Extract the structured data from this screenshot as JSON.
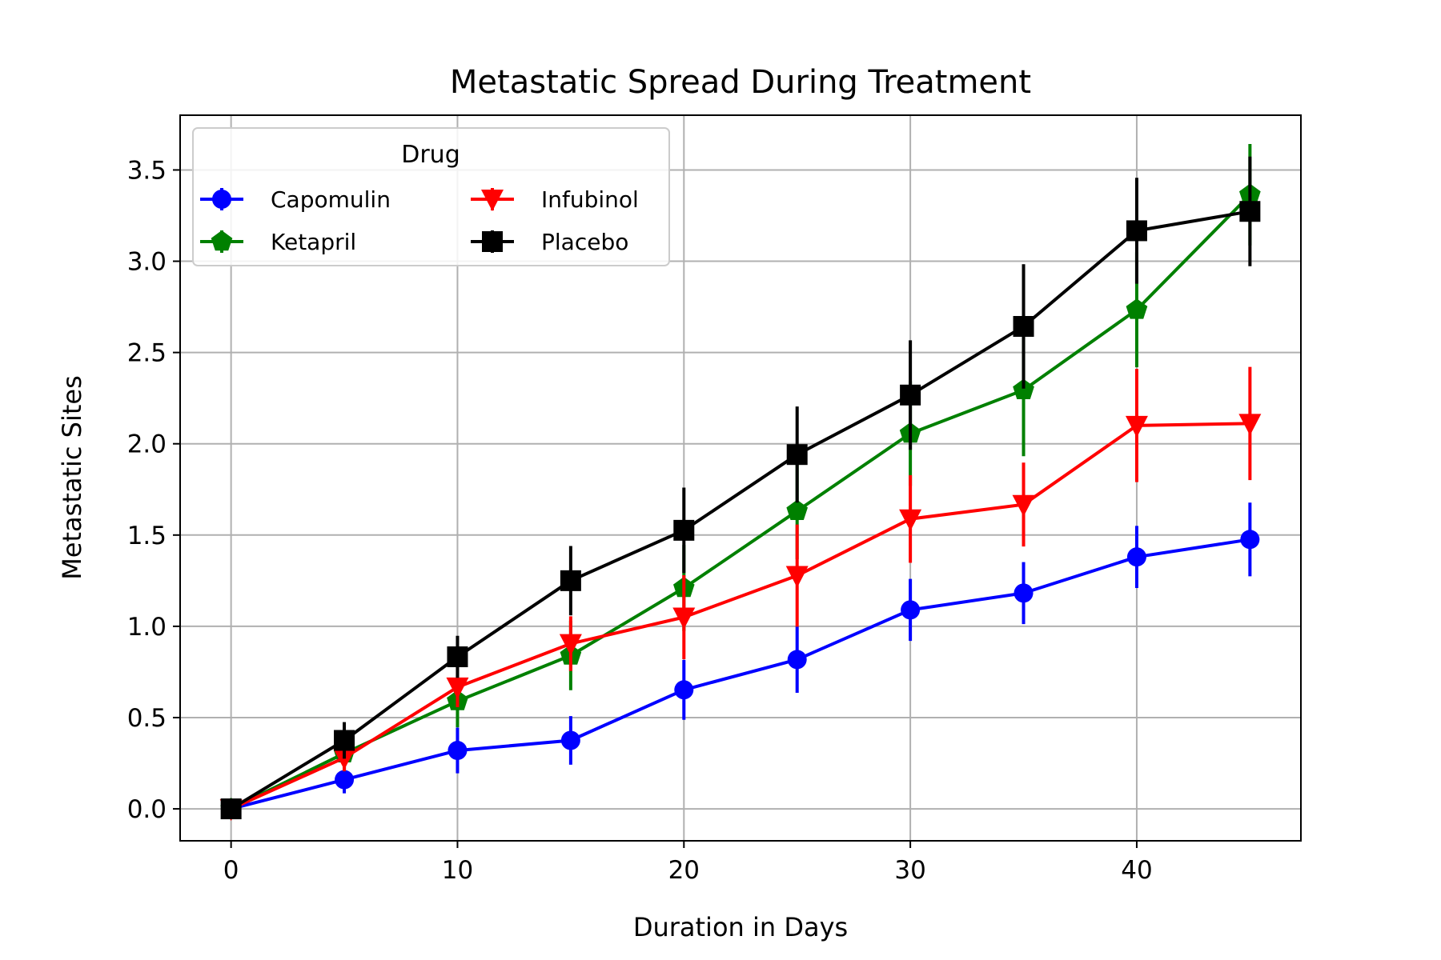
{
  "chart_data": {
    "type": "line",
    "title": "Metastatic Spread During Treatment",
    "xlabel": "Duration in Days",
    "ylabel": "Metastatic Sites",
    "xlim": [
      -2.25,
      47.25
    ],
    "ylim": [
      -0.175,
      3.8
    ],
    "xticks": [
      0,
      10,
      20,
      30,
      40
    ],
    "yticks": [
      0.0,
      0.5,
      1.0,
      1.5,
      2.0,
      2.5,
      3.0,
      3.5
    ],
    "xtick_labels": [
      "0",
      "10",
      "20",
      "30",
      "40"
    ],
    "ytick_labels": [
      "0.0",
      "0.5",
      "1.0",
      "1.5",
      "2.0",
      "2.5",
      "3.0",
      "3.5"
    ],
    "grid": true,
    "legend": {
      "title": "Drug",
      "placement": "upper-left",
      "columns": 2
    },
    "x": [
      0,
      5,
      10,
      15,
      20,
      25,
      30,
      35,
      40,
      45
    ],
    "series": [
      {
        "name": "Capomulin",
        "color": "#0000ff",
        "marker": "circle",
        "values": [
          0.0,
          0.16,
          0.32,
          0.375,
          0.652,
          0.818,
          1.09,
          1.182,
          1.38,
          1.476
        ],
        "errors": [
          0.0,
          0.075,
          0.125,
          0.133,
          0.164,
          0.182,
          0.17,
          0.17,
          0.17,
          0.202
        ]
      },
      {
        "name": "Ketapril",
        "color": "#008000",
        "marker": "pentagon",
        "values": [
          0.0,
          0.304,
          0.59,
          0.84,
          1.21,
          1.632,
          2.056,
          2.294,
          2.734,
          3.364
        ],
        "errors": [
          0.0,
          0.098,
          0.143,
          0.19,
          0.236,
          0.265,
          0.287,
          0.362,
          0.315,
          0.278
        ]
      },
      {
        "name": "Infubinol",
        "color": "#ff0000",
        "marker": "triangle-down",
        "values": [
          0.0,
          0.28,
          0.667,
          0.905,
          1.05,
          1.278,
          1.588,
          1.667,
          2.1,
          2.111
        ],
        "errors": [
          0.0,
          0.074,
          0.11,
          0.15,
          0.23,
          0.28,
          0.24,
          0.23,
          0.31,
          0.31
        ]
      },
      {
        "name": "Placebo",
        "color": "#000000",
        "marker": "square",
        "values": [
          0.0,
          0.375,
          0.833,
          1.25,
          1.526,
          1.941,
          2.267,
          2.643,
          3.167,
          3.273
        ],
        "errors": [
          0.0,
          0.1,
          0.115,
          0.19,
          0.234,
          0.263,
          0.3,
          0.341,
          0.29,
          0.3
        ]
      }
    ]
  }
}
